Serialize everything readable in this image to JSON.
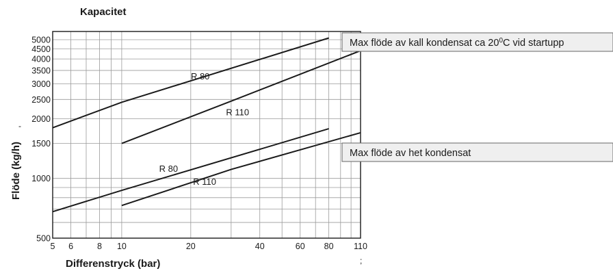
{
  "chart_data": {
    "type": "line",
    "title": "Kapacitet",
    "xlabel": "Differenstryck (bar)",
    "ylabel": "Flöde (kg/h)",
    "x_scale": "log",
    "y_scale": "log",
    "xlim": [
      5,
      110
    ],
    "ylim": [
      500,
      5500
    ],
    "x_grid": [
      5,
      6,
      7,
      8,
      9,
      10,
      20,
      30,
      40,
      50,
      60,
      70,
      80,
      90,
      100,
      110
    ],
    "y_grid": [
      500,
      600,
      700,
      800,
      900,
      1000,
      1500,
      2000,
      2500,
      3000,
      3500,
      4000,
      4500,
      5000
    ],
    "x_ticks": [
      {
        "value": 5,
        "label": "5"
      },
      {
        "value": 6,
        "label": "6"
      },
      {
        "value": 8,
        "label": "8"
      },
      {
        "value": 10,
        "label": "10"
      },
      {
        "value": 20,
        "label": "20"
      },
      {
        "value": 40,
        "label": "40"
      },
      {
        "value": 60,
        "label": "60"
      },
      {
        "value": 80,
        "label": "80"
      },
      {
        "value": 110,
        "label": "110"
      }
    ],
    "y_ticks": [
      {
        "value": 500,
        "label": "500"
      },
      {
        "value": 1000,
        "label": "1000"
      },
      {
        "value": 1500,
        "label": "1500"
      },
      {
        "value": 2000,
        "label": "2000"
      },
      {
        "value": 2500,
        "label": "2500"
      },
      {
        "value": 3000,
        "label": "3000"
      },
      {
        "value": 3500,
        "label": "3500"
      },
      {
        "value": 4000,
        "label": "4000"
      },
      {
        "value": 4500,
        "label": "4500"
      },
      {
        "value": 5000,
        "label": "5000"
      }
    ],
    "grid": true,
    "series": [
      {
        "group": "cold",
        "name": "R 80",
        "x": [
          5,
          10,
          80
        ],
        "y": [
          1800,
          2420,
          5100
        ],
        "label": {
          "text": "R 80",
          "x": 22,
          "y": 3150
        }
      },
      {
        "group": "cold",
        "name": "R 110",
        "x": [
          10,
          30,
          110
        ],
        "y": [
          1500,
          2450,
          4400
        ],
        "label": {
          "text": "R 110",
          "x": 32,
          "y": 2080
        }
      },
      {
        "group": "hot",
        "name": "R 80",
        "x": [
          5,
          10,
          80
        ],
        "y": [
          680,
          870,
          1780
        ],
        "label": {
          "text": "R 80",
          "x": 16,
          "y": 1080
        }
      },
      {
        "group": "hot",
        "name": "R 110",
        "x": [
          10,
          30,
          110
        ],
        "y": [
          730,
          1110,
          1700
        ],
        "label": {
          "text": "R 110",
          "x": 23,
          "y": 930
        }
      }
    ],
    "annotations": [
      {
        "kind": "callout",
        "text": "Max flöde av kall kondensat ca 20°C vid startupp",
        "near_series": "cold"
      },
      {
        "kind": "callout",
        "text": "Max flöde av het kondensat",
        "near_series": "hot"
      },
      {
        "kind": "stray-mark",
        "text": "-"
      },
      {
        "kind": "stray-mark",
        "text": ";"
      }
    ]
  }
}
